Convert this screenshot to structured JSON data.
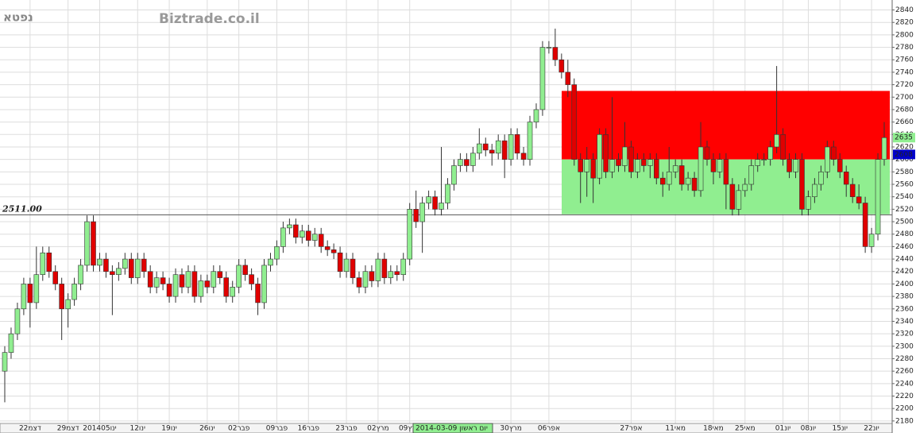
{
  "chart_data": {
    "type": "candlestick",
    "symbol": "נפטא",
    "watermark": "Biztrade.co.il",
    "cursor_label": "2014-03-09 יום ראשון",
    "categories": [
      null,
      null,
      null,
      null,
      "22דצמ",
      null,
      null,
      null,
      null,
      null,
      "29דצמ",
      null,
      null,
      null,
      null,
      "201405ינו",
      null,
      null,
      null,
      null,
      null,
      "12ינו",
      null,
      null,
      null,
      null,
      "19ינו",
      null,
      null,
      null,
      null,
      null,
      "26ינו",
      null,
      null,
      null,
      null,
      "02פבר",
      null,
      null,
      null,
      null,
      null,
      "09פבר",
      null,
      null,
      null,
      null,
      "16פבר",
      null,
      null,
      null,
      null,
      null,
      "23פבר",
      null,
      null,
      null,
      null,
      "02מרץ",
      null,
      null,
      null,
      null,
      "09מרץ",
      null,
      null,
      null,
      null,
      null,
      null,
      null,
      null,
      null,
      null,
      null,
      null,
      null,
      null,
      null,
      "30מרץ",
      null,
      null,
      null,
      null,
      null,
      "06אפר",
      null,
      null,
      null,
      null,
      null,
      null,
      null,
      null,
      null,
      null,
      null,
      null,
      "27אפר",
      null,
      null,
      null,
      null,
      null,
      null,
      "11מאי",
      null,
      null,
      null,
      null,
      null,
      "18מאי",
      null,
      null,
      null,
      null,
      "25מאי",
      null,
      null,
      null,
      null,
      null,
      "01יונ",
      null,
      null,
      null,
      "08יונ",
      null,
      null,
      null,
      null,
      "15יונ",
      null,
      null,
      null,
      null,
      "22יונ",
      null,
      null
    ],
    "open": [
      2260,
      2290,
      2320,
      2360,
      2400,
      2370,
      2415,
      2450,
      2420,
      2400,
      2360,
      2375,
      2400,
      2430,
      2500,
      2430,
      2440,
      2420,
      2415,
      2425,
      2440,
      2410,
      2440,
      2420,
      2395,
      2410,
      2400,
      2380,
      2415,
      2395,
      2420,
      2380,
      2405,
      2395,
      2420,
      2410,
      2380,
      2395,
      2430,
      2415,
      2400,
      2370,
      2430,
      2440,
      2460,
      2490,
      2495,
      2475,
      2485,
      2470,
      2480,
      2460,
      2455,
      2450,
      2420,
      2440,
      2410,
      2395,
      2420,
      2405,
      2440,
      2410,
      2420,
      2415,
      2440,
      2520,
      2500,
      2530,
      2540,
      2520,
      2530,
      2560,
      2590,
      2600,
      2590,
      2610,
      2625,
      2615,
      2610,
      2630,
      2600,
      2640,
      2610,
      2600,
      2660,
      2680,
      2780,
      2780,
      2760,
      2740,
      2720,
      2600,
      2580,
      2600,
      2570,
      2640,
      2580,
      2600,
      2590,
      2620,
      2580,
      2600,
      2590,
      2600,
      2570,
      2560,
      2580,
      2590,
      2560,
      2570,
      2550,
      2620,
      2600,
      2580,
      2600,
      2560,
      2520,
      2550,
      2560,
      2590,
      2600,
      2600,
      2620,
      2640,
      2600,
      2580,
      2600,
      2520,
      2540,
      2560,
      2580,
      2620,
      2600,
      2580,
      2560,
      2540,
      2530,
      2460,
      2480,
      2600
    ],
    "high": [
      2300,
      2330,
      2370,
      2410,
      2410,
      2460,
      2460,
      2460,
      2430,
      2410,
      2385,
      2410,
      2440,
      2510,
      2510,
      2450,
      2450,
      2430,
      2435,
      2450,
      2450,
      2450,
      2450,
      2430,
      2420,
      2420,
      2410,
      2425,
      2425,
      2430,
      2430,
      2415,
      2415,
      2430,
      2430,
      2420,
      2405,
      2440,
      2440,
      2425,
      2410,
      2440,
      2450,
      2470,
      2500,
      2505,
      2505,
      2495,
      2495,
      2490,
      2490,
      2470,
      2465,
      2460,
      2450,
      2450,
      2420,
      2430,
      2430,
      2450,
      2450,
      2430,
      2430,
      2450,
      2530,
      2550,
      2540,
      2550,
      2550,
      2620,
      2570,
      2600,
      2610,
      2610,
      2620,
      2650,
      2635,
      2625,
      2640,
      2640,
      2650,
      2650,
      2620,
      2670,
      2690,
      2790,
      2790,
      2810,
      2770,
      2760,
      2730,
      2610,
      2620,
      2610,
      2650,
      2650,
      2700,
      2610,
      2660,
      2630,
      2610,
      2610,
      2610,
      2610,
      2580,
      2620,
      2600,
      2600,
      2580,
      2580,
      2660,
      2630,
      2610,
      2610,
      2610,
      2570,
      2560,
      2570,
      2600,
      2610,
      2610,
      2630,
      2750,
      2650,
      2610,
      2610,
      2610,
      2550,
      2570,
      2590,
      2630,
      2630,
      2610,
      2590,
      2570,
      2560,
      2540,
      2490,
      2610,
      2660
    ],
    "low": [
      2210,
      2280,
      2310,
      2350,
      2330,
      2360,
      2405,
      2410,
      2390,
      2310,
      2330,
      2365,
      2390,
      2420,
      2420,
      2420,
      2410,
      2350,
      2405,
      2415,
      2400,
      2400,
      2410,
      2385,
      2385,
      2390,
      2370,
      2370,
      2385,
      2385,
      2370,
      2370,
      2385,
      2385,
      2400,
      2370,
      2370,
      2385,
      2405,
      2390,
      2350,
      2360,
      2420,
      2430,
      2450,
      2480,
      2465,
      2465,
      2460,
      2460,
      2450,
      2445,
      2440,
      2410,
      2410,
      2400,
      2385,
      2385,
      2395,
      2395,
      2400,
      2400,
      2405,
      2405,
      2430,
      2490,
      2450,
      2520,
      2510,
      2510,
      2520,
      2550,
      2580,
      2580,
      2580,
      2600,
      2605,
      2590,
      2600,
      2570,
      2590,
      2600,
      2590,
      2590,
      2650,
      2670,
      2770,
      2750,
      2730,
      2700,
      2590,
      2530,
      2540,
      2530,
      2560,
      2570,
      2570,
      2580,
      2580,
      2570,
      2570,
      2580,
      2570,
      2560,
      2540,
      2550,
      2570,
      2550,
      2550,
      2540,
      2540,
      2590,
      2560,
      2570,
      2520,
      2510,
      2510,
      2540,
      2550,
      2580,
      2590,
      2590,
      2610,
      2590,
      2570,
      2570,
      2510,
      2510,
      2530,
      2550,
      2570,
      2590,
      2570,
      2540,
      2530,
      2520,
      2450,
      2450,
      2470,
      2590
    ],
    "close": [
      2290,
      2320,
      2360,
      2400,
      2370,
      2415,
      2450,
      2420,
      2400,
      2360,
      2375,
      2400,
      2430,
      2500,
      2430,
      2440,
      2420,
      2415,
      2425,
      2440,
      2410,
      2440,
      2420,
      2395,
      2410,
      2400,
      2380,
      2415,
      2395,
      2420,
      2380,
      2405,
      2395,
      2420,
      2410,
      2380,
      2395,
      2430,
      2415,
      2400,
      2370,
      2430,
      2440,
      2460,
      2490,
      2495,
      2475,
      2485,
      2470,
      2480,
      2460,
      2455,
      2450,
      2420,
      2440,
      2410,
      2395,
      2420,
      2405,
      2440,
      2410,
      2420,
      2415,
      2440,
      2520,
      2500,
      2530,
      2540,
      2520,
      2530,
      2560,
      2590,
      2600,
      2590,
      2610,
      2625,
      2615,
      2610,
      2630,
      2600,
      2640,
      2610,
      2600,
      2660,
      2680,
      2780,
      2780,
      2760,
      2740,
      2720,
      2600,
      2580,
      2600,
      2570,
      2640,
      2580,
      2600,
      2590,
      2620,
      2580,
      2600,
      2590,
      2600,
      2570,
      2560,
      2580,
      2590,
      2560,
      2570,
      2550,
      2620,
      2600,
      2580,
      2600,
      2560,
      2520,
      2550,
      2560,
      2590,
      2600,
      2600,
      2620,
      2640,
      2600,
      2580,
      2600,
      2520,
      2540,
      2560,
      2580,
      2620,
      2600,
      2580,
      2560,
      2540,
      2530,
      2460,
      2480,
      2600,
      2635
    ],
    "up_color": "#90ee90",
    "down_color": "#e00000",
    "zones": [
      {
        "low": 2600,
        "high": 2710,
        "color": "#ff0000"
      },
      {
        "low": 2512,
        "high": 2600,
        "color": "#90ee90"
      }
    ],
    "hline": {
      "value": 2511,
      "label": "2511.00",
      "color": "#cc0000"
    },
    "markers": [
      {
        "value": 2635,
        "label": "2635",
        "color": "#90ee90",
        "text_color": "#000000"
      },
      {
        "value": 2608,
        "label": "2608",
        "color": "#0000cc",
        "text_color": "#ffffff"
      }
    ],
    "ylim": [
      2176,
      2856
    ],
    "yticks": [
      2180,
      2200,
      2220,
      2240,
      2260,
      2280,
      2300,
      2320,
      2340,
      2360,
      2380,
      2400,
      2420,
      2440,
      2460,
      2480,
      2500,
      2520,
      2540,
      2560,
      2580,
      2600,
      2620,
      2640,
      2660,
      2680,
      2700,
      2720,
      2740,
      2760,
      2780,
      2800,
      2820,
      2840
    ],
    "grid": true
  }
}
